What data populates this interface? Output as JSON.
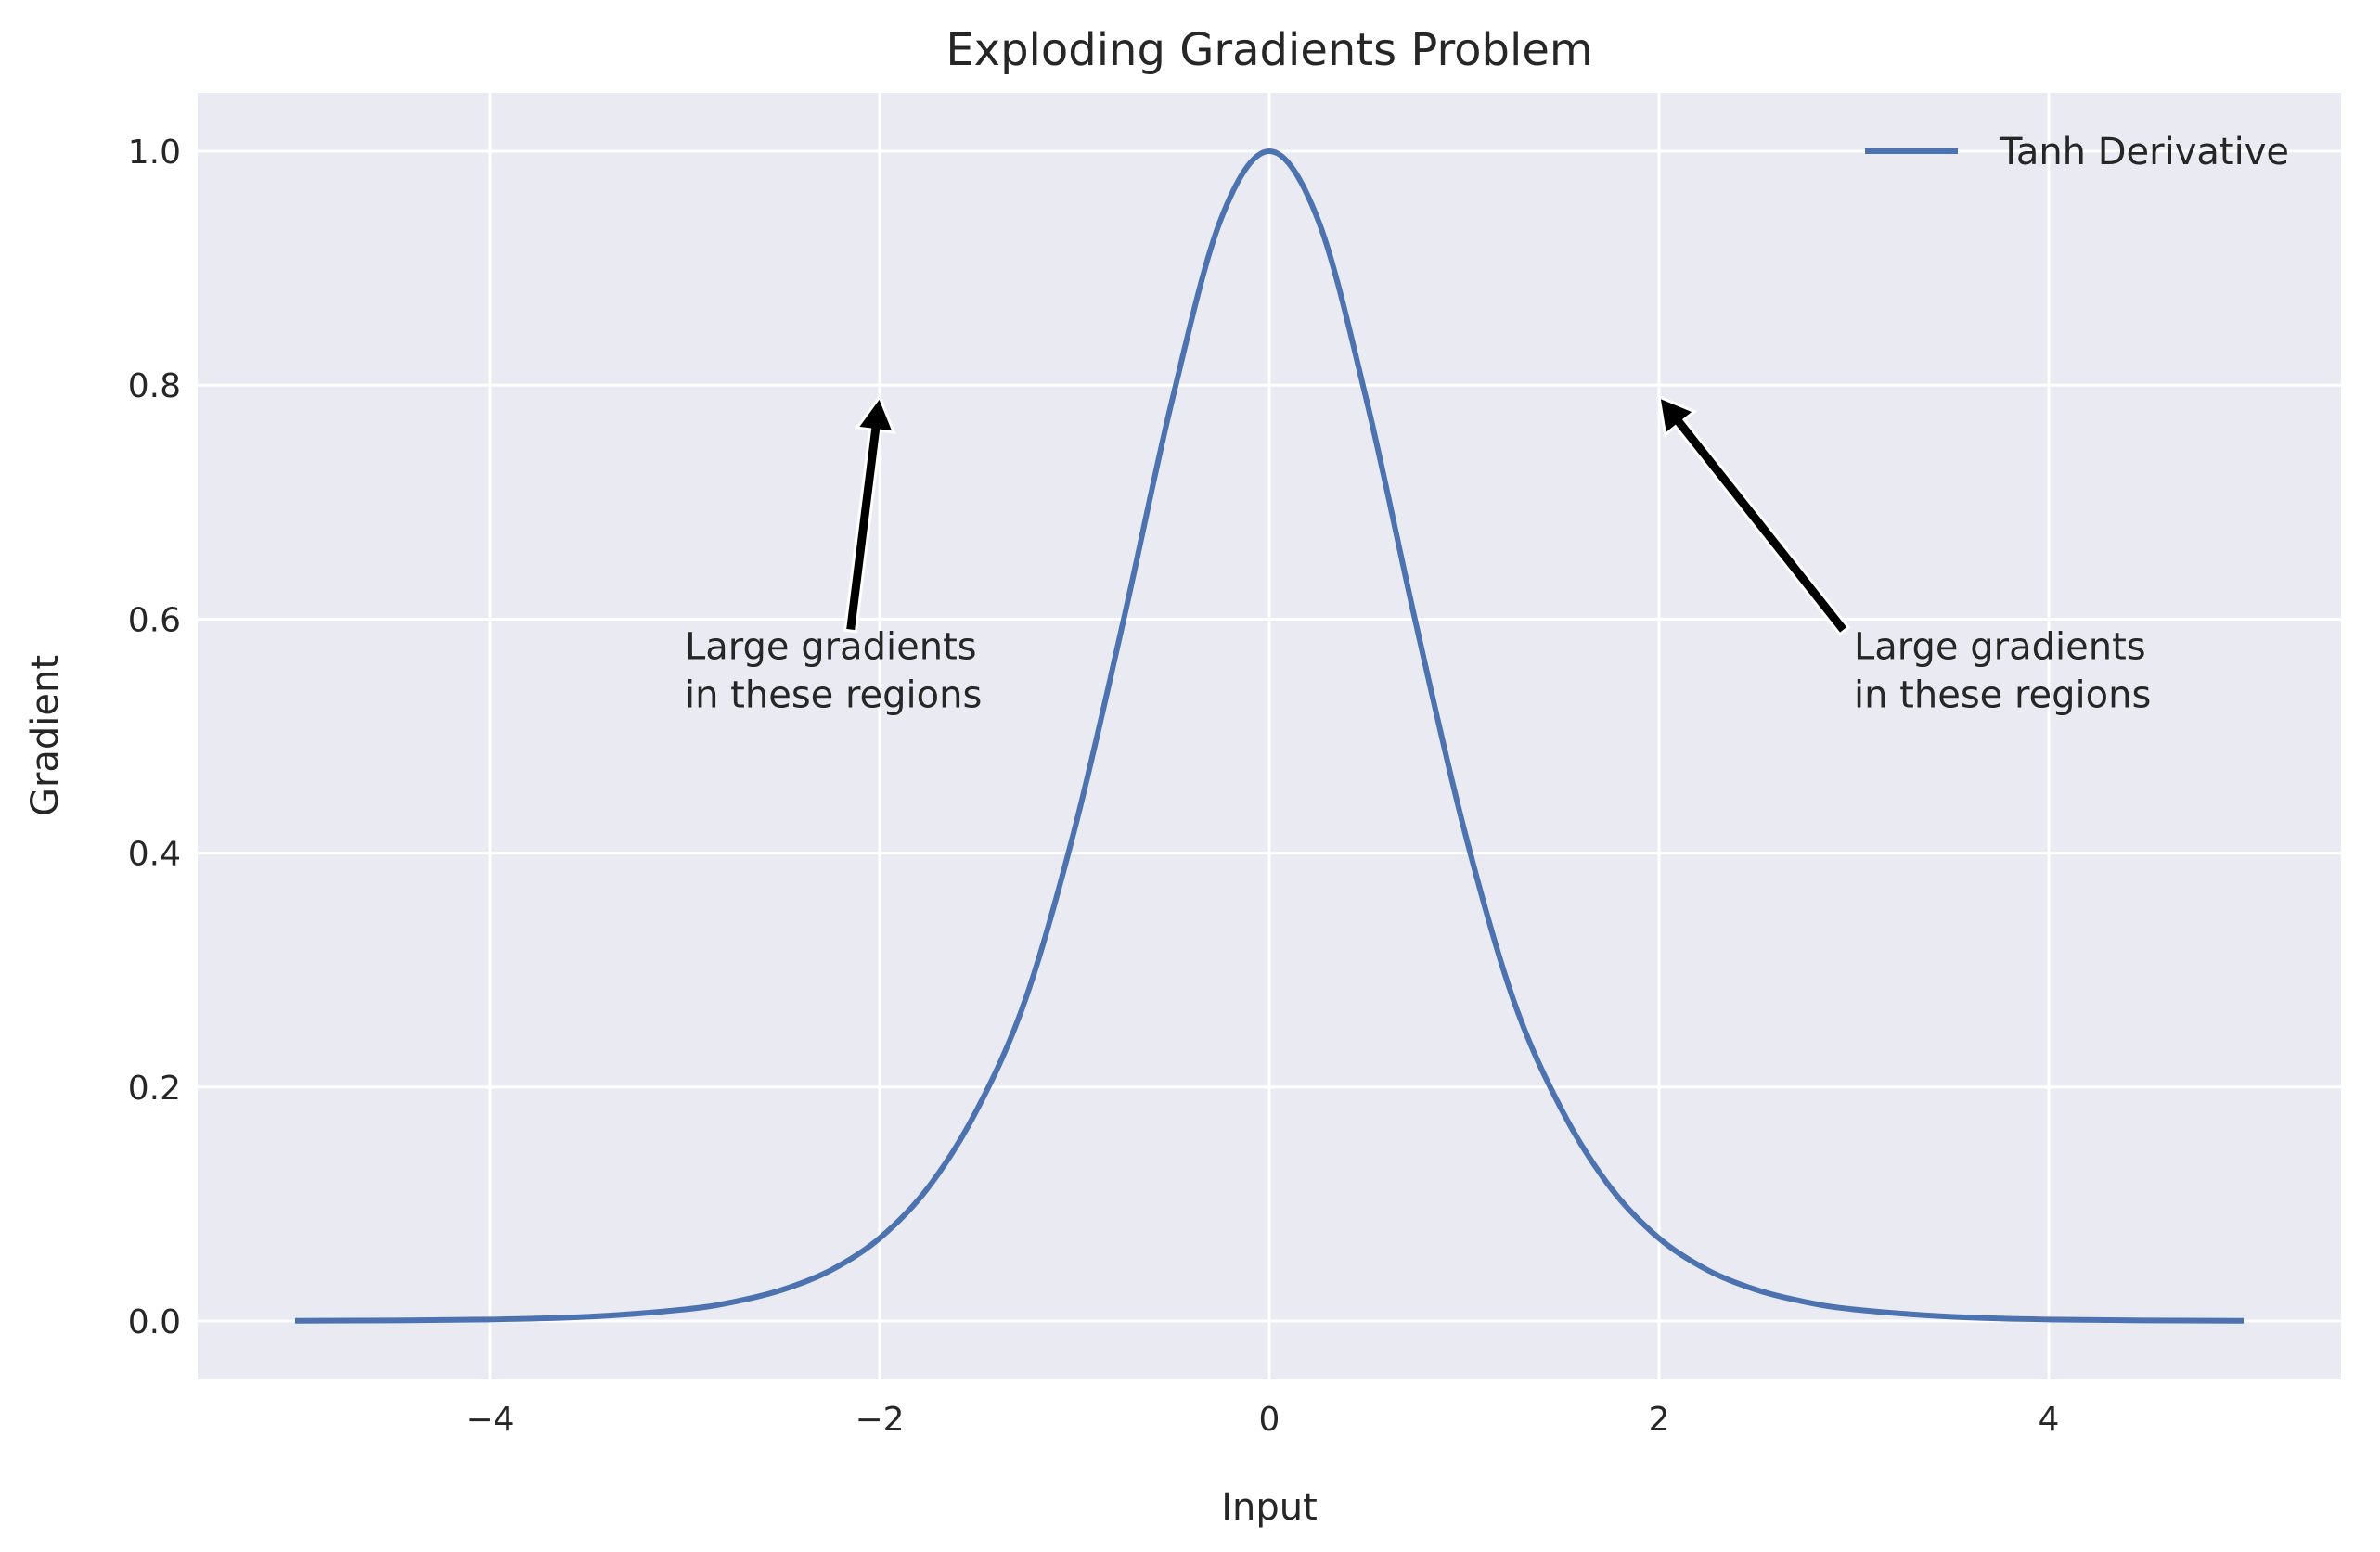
{
  "chart_data": {
    "type": "line",
    "title": "Exploding Gradients Problem",
    "xlabel": "Input",
    "ylabel": "Gradient",
    "xlim": [
      -5.5,
      5.5
    ],
    "ylim": [
      -0.05,
      1.05
    ],
    "xticks": [
      -4,
      -2,
      0,
      2,
      4
    ],
    "xtick_labels": [
      "−4",
      "−2",
      "0",
      "2",
      "4"
    ],
    "yticks": [
      0.0,
      0.2,
      0.4,
      0.6,
      0.8,
      1.0
    ],
    "ytick_labels": [
      "0.0",
      "0.2",
      "0.4",
      "0.6",
      "0.8",
      "1.0"
    ],
    "grid": true,
    "legend_position": "top-right",
    "colors": {
      "background": "#eaeaf2",
      "grid": "#ffffff",
      "series": "#4c72b0",
      "arrow": "#000000"
    },
    "series": [
      {
        "name": "Tanh Derivative",
        "x": [
          -5.0,
          -4.5,
          -4.0,
          -3.5,
          -3.0,
          -2.75,
          -2.5,
          -2.25,
          -2.0,
          -1.75,
          -1.5,
          -1.25,
          -1.0,
          -0.75,
          -0.5,
          -0.25,
          0.0,
          0.25,
          0.5,
          0.75,
          1.0,
          1.25,
          1.5,
          1.75,
          2.0,
          2.25,
          2.5,
          2.75,
          3.0,
          3.5,
          4.0,
          4.5,
          5.0
        ],
        "y": [
          0.0002,
          0.0005,
          0.0013,
          0.0036,
          0.0099,
          0.0163,
          0.0266,
          0.0434,
          0.0707,
          0.1142,
          0.1807,
          0.2757,
          0.42,
          0.5979,
          0.7864,
          0.9413,
          1.0,
          0.9413,
          0.7864,
          0.5979,
          0.42,
          0.2757,
          0.1807,
          0.1142,
          0.0707,
          0.0434,
          0.0266,
          0.0163,
          0.0099,
          0.0036,
          0.0013,
          0.0005,
          0.0002
        ]
      }
    ],
    "annotations": [
      {
        "lines": [
          "Large gradients",
          "in these regions"
        ],
        "text_xy": [
          -3.0,
          0.55
        ],
        "arrow_to": [
          -2.0,
          0.79
        ]
      },
      {
        "lines": [
          "Large gradients",
          "in these regions"
        ],
        "text_xy": [
          3.0,
          0.55
        ],
        "arrow_to": [
          2.0,
          0.79
        ]
      }
    ]
  }
}
